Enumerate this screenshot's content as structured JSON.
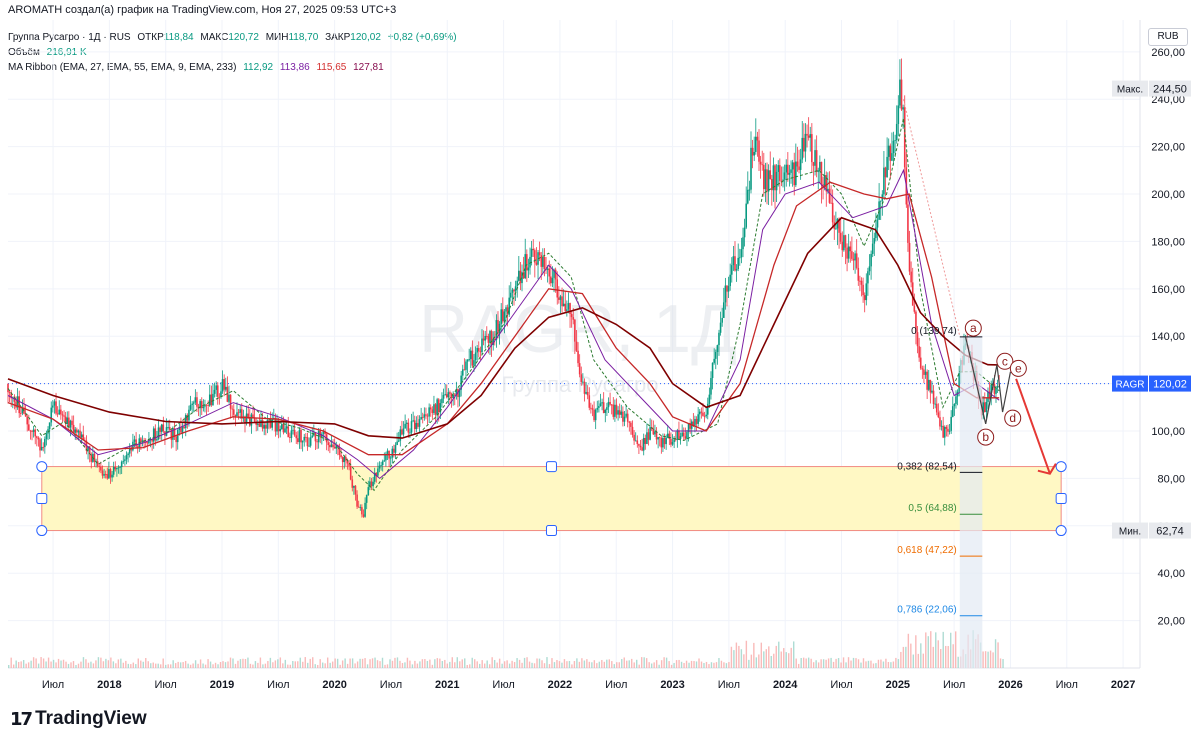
{
  "header": {
    "text": "AROMATH создал(а) график на TradingView.com, Ноя 27, 2025 09:53 UTC+3"
  },
  "legend": {
    "symbol": "Группа Русагро · 1Д · RUS",
    "open_label": "ОТКР",
    "open": "118,84",
    "high_label": "МАКС",
    "high": "120,72",
    "low_label": "МИН",
    "low": "118,70",
    "close_label": "ЗАКР",
    "close": "120,02",
    "change": "+0,82 (+0,69%)",
    "volume_label": "Объём",
    "volume": "216,91 K",
    "ma_label": "MA Ribbon (EMA, 27, EMA, 55, EMA, 9, EMA, 233)",
    "ma_values": [
      "112,92",
      "113,86",
      "115,65",
      "127,81"
    ]
  },
  "currency": "RUB",
  "watermark": {
    "ticker": "RAGR, 1Д",
    "name": "Группа Русагро"
  },
  "price_tags": {
    "max_label": "Макс.",
    "max_value": "244,50",
    "last_label": "RAGR",
    "last_value": "120,02",
    "min_label": "Мин.",
    "min_value": "62,74"
  },
  "fib_labels": [
    {
      "level": "0",
      "price": 139.74,
      "text": "0 (139,74)",
      "color": "#131722"
    },
    {
      "level": "0.382",
      "price": 82.54,
      "text": "0,382 (82,54)",
      "color": "#131722"
    },
    {
      "level": "0.5",
      "price": 64.88,
      "text": "0,5 (64,88)",
      "color": "#388e3c"
    },
    {
      "level": "0.618",
      "price": 47.22,
      "text": "0,618 (47,22)",
      "color": "#ef6c00"
    },
    {
      "level": "0.786",
      "price": 22.06,
      "text": "0,786 (22,06)",
      "color": "#1e88e5"
    }
  ],
  "wave_labels": [
    "a",
    "b",
    "c",
    "d",
    "e"
  ],
  "colors": {
    "accent": "#2962ff",
    "bull": "#089981",
    "bear": "#f23645",
    "ema233": "#880e0e",
    "zone": "#fff8c4"
  },
  "footer": {
    "brand": "TradingView"
  },
  "chart_data": {
    "type": "candlestick",
    "title": "Группа Русагро · 1Д · RUS",
    "y_axis": {
      "ticks": [
        20,
        40,
        60,
        80,
        100,
        120,
        140,
        160,
        180,
        200,
        220,
        240,
        260
      ],
      "labels": [
        "20,00",
        "40,00",
        "60,00",
        "80,00",
        "100,00",
        "120,00",
        "140,00",
        "160,00",
        "180,00",
        "200,00",
        "220,00",
        "240,00",
        "260,00"
      ],
      "range": [
        0,
        265
      ]
    },
    "x_axis": {
      "labels": [
        "Июл",
        "2018",
        "Июл",
        "2019",
        "Июл",
        "2020",
        "Июл",
        "2021",
        "Июл",
        "2022",
        "Июл",
        "2023",
        "Июл",
        "2024",
        "Июл",
        "2025",
        "Июл",
        "2026",
        "Июл",
        "2027"
      ],
      "dates": [
        2017.5,
        2018.0,
        2018.5,
        2019.0,
        2019.5,
        2020.0,
        2020.5,
        2021.0,
        2021.5,
        2022.0,
        2022.5,
        2023.0,
        2023.5,
        2024.0,
        2024.5,
        2025.0,
        2025.5,
        2026.0,
        2026.5,
        2027.0
      ],
      "range": [
        2017.1,
        2027.15
      ]
    },
    "price_series": {
      "name": "RAGR",
      "x": [
        2017.1,
        2017.2,
        2017.3,
        2017.4,
        2017.5,
        2017.6,
        2017.75,
        2017.9,
        2018.0,
        2018.1,
        2018.2,
        2018.3,
        2018.45,
        2018.6,
        2018.75,
        2018.9,
        2019.0,
        2019.1,
        2019.2,
        2019.3,
        2019.45,
        2019.6,
        2019.75,
        2019.9,
        2020.0,
        2020.1,
        2020.2,
        2020.25,
        2020.3,
        2020.4,
        2020.5,
        2020.6,
        2020.7,
        2020.8,
        2020.9,
        2021.0,
        2021.1,
        2021.2,
        2021.3,
        2021.4,
        2021.5,
        2021.6,
        2021.7,
        2021.8,
        2021.9,
        2022.0,
        2022.1,
        2022.2,
        2022.3,
        2022.4,
        2022.5,
        2022.6,
        2022.7,
        2022.8,
        2022.9,
        2023.0,
        2023.1,
        2023.2,
        2023.3,
        2023.4,
        2023.5,
        2023.6,
        2023.7,
        2023.75,
        2023.8,
        2023.9,
        2024.0,
        2024.1,
        2024.2,
        2024.3,
        2024.4,
        2024.5,
        2024.6,
        2024.7,
        2024.8,
        2024.9,
        2025.0,
        2025.02,
        2025.05,
        2025.1,
        2025.2,
        2025.3,
        2025.4,
        2025.45,
        2025.5,
        2025.6,
        2025.7,
        2025.75,
        2025.8,
        2025.9
      ],
      "y": [
        120,
        110,
        100,
        92,
        110,
        105,
        98,
        84,
        82,
        86,
        95,
        96,
        100,
        98,
        112,
        114,
        119,
        110,
        106,
        104,
        103,
        100,
        96,
        99,
        92,
        88,
        70,
        63,
        76,
        86,
        91,
        100,
        102,
        108,
        110,
        115,
        118,
        130,
        135,
        140,
        150,
        160,
        172,
        175,
        168,
        158,
        150,
        118,
        106,
        110,
        108,
        104,
        92,
        100,
        95,
        97,
        98,
        104,
        110,
        140,
        165,
        175,
        215,
        225,
        205,
        206,
        207,
        210,
        225,
        210,
        195,
        180,
        175,
        155,
        190,
        210,
        235,
        244.5,
        230,
        165,
        130,
        115,
        100,
        99,
        110,
        138,
        120,
        108,
        115,
        120
      ]
    },
    "ma_series": [
      {
        "name": "EMA 9",
        "x": [
          2017.1,
          2017.4,
          2017.6,
          2017.9,
          2018.2,
          2018.5,
          2018.8,
          2019.1,
          2019.4,
          2019.7,
          2020.0,
          2020.2,
          2020.35,
          2020.6,
          2020.9,
          2021.2,
          2021.5,
          2021.7,
          2021.9,
          2022.1,
          2022.3,
          2022.6,
          2022.9,
          2023.1,
          2023.4,
          2023.6,
          2023.8,
          2024.0,
          2024.3,
          2024.5,
          2024.7,
          2024.9,
          2025.05,
          2025.2,
          2025.4,
          2025.55,
          2025.7,
          2025.9
        ],
        "y": [
          118,
          98,
          104,
          86,
          94,
          99,
          110,
          117,
          105,
          101,
          95,
          82,
          75,
          92,
          106,
          125,
          145,
          170,
          175,
          165,
          130,
          110,
          98,
          96,
          103,
          145,
          200,
          206,
          210,
          200,
          178,
          200,
          232,
          160,
          110,
          125,
          125,
          117
        ]
      },
      {
        "name": "EMA 27",
        "x": [
          2017.1,
          2017.5,
          2017.9,
          2018.3,
          2018.7,
          2019.1,
          2019.5,
          2019.9,
          2020.2,
          2020.4,
          2020.7,
          2021.0,
          2021.3,
          2021.6,
          2021.9,
          2022.1,
          2022.4,
          2022.7,
          2023.0,
          2023.3,
          2023.6,
          2023.8,
          2024.0,
          2024.3,
          2024.6,
          2024.9,
          2025.05,
          2025.3,
          2025.5,
          2025.7,
          2025.9
        ],
        "y": [
          115,
          105,
          90,
          95,
          103,
          112,
          106,
          98,
          88,
          80,
          92,
          110,
          130,
          150,
          170,
          160,
          130,
          115,
          100,
          100,
          130,
          185,
          200,
          205,
          190,
          195,
          210,
          145,
          115,
          120,
          113
        ]
      },
      {
        "name": "EMA 55",
        "x": [
          2017.1,
          2017.5,
          2017.9,
          2018.3,
          2018.7,
          2019.1,
          2019.5,
          2019.9,
          2020.3,
          2020.6,
          2021.0,
          2021.3,
          2021.6,
          2021.9,
          2022.2,
          2022.5,
          2022.8,
          2023.0,
          2023.3,
          2023.6,
          2023.9,
          2024.1,
          2024.4,
          2024.7,
          2024.9,
          2025.1,
          2025.3,
          2025.5,
          2025.7,
          2025.9
        ],
        "y": [
          112,
          105,
          92,
          93,
          100,
          106,
          105,
          100,
          90,
          90,
          103,
          120,
          140,
          160,
          158,
          135,
          120,
          106,
          100,
          120,
          170,
          195,
          205,
          200,
          198,
          200,
          165,
          120,
          114,
          114
        ]
      },
      {
        "name": "EMA 233",
        "x": [
          2017.1,
          2017.5,
          2018.0,
          2018.5,
          2019.0,
          2019.5,
          2020.0,
          2020.3,
          2020.6,
          2021.0,
          2021.3,
          2021.6,
          2021.9,
          2022.2,
          2022.5,
          2022.8,
          2023.0,
          2023.3,
          2023.6,
          2023.9,
          2024.2,
          2024.5,
          2024.8,
          2025.0,
          2025.2,
          2025.4,
          2025.6,
          2025.8,
          2025.95
        ],
        "y": [
          122,
          115,
          108,
          104,
          103,
          104,
          103,
          98,
          97,
          103,
          115,
          135,
          148,
          152,
          145,
          135,
          120,
          110,
          115,
          145,
          175,
          190,
          185,
          170,
          150,
          140,
          132,
          128,
          127.8
        ]
      }
    ],
    "fib_zone": {
      "price_top": 85,
      "price_bottom": 58,
      "x_start": 2017.4,
      "x_end": 2026.45
    },
    "projection_arrow": {
      "from": [
        2026.05,
        122
      ],
      "to": [
        2026.35,
        82
      ]
    },
    "grid": true,
    "legend_position": "top-left"
  }
}
